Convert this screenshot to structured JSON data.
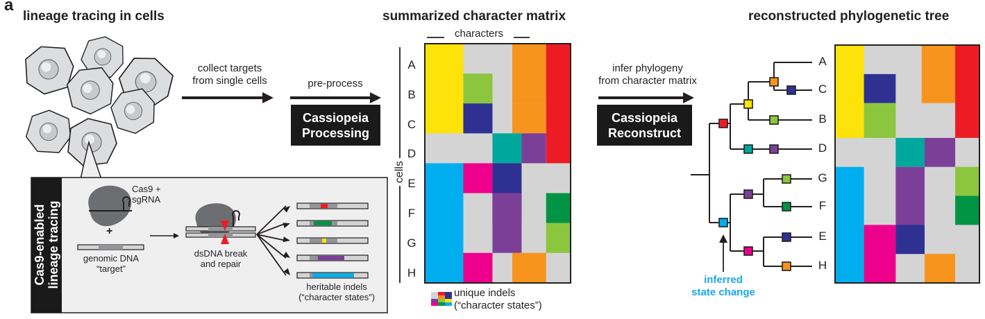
{
  "panel_letter": "a",
  "sections": {
    "left_title": "lineage tracing in cells",
    "middle_title": "summarized character matrix",
    "right_title": "reconstructed phylogenetic tree"
  },
  "steps": {
    "collect": [
      "collect targets",
      "from single cells"
    ],
    "preprocess": "pre-process",
    "processing_box": [
      "Cassiopeia",
      "Processing"
    ],
    "infer": [
      "infer phylogeny",
      "from character matrix"
    ],
    "reconstruct_box": [
      "Cassiopeia",
      "Reconstruct"
    ]
  },
  "inset": {
    "side_label": [
      "Cas9-enabled",
      "lineage tracing"
    ],
    "cas9_label": [
      "Cas9 +",
      "sgRNA"
    ],
    "plus": "+",
    "genomic_label": [
      "genomic DNA",
      "“target”"
    ],
    "break_label": [
      "dsDNA break",
      "and repair"
    ],
    "indels_label": [
      "heritable indels",
      "(“character states”)"
    ]
  },
  "matrix": {
    "characters_label": "characters",
    "cells_label": "cells",
    "rows": [
      "A",
      "B",
      "C",
      "D",
      "E",
      "F",
      "G",
      "H"
    ],
    "legend": [
      "unique indels",
      "(“character states”)"
    ]
  },
  "tree": {
    "leaves": [
      "A",
      "C",
      "B",
      "D",
      "G",
      "F",
      "E",
      "H"
    ],
    "annotation": [
      "inferred",
      "state change"
    ]
  },
  "colors": {
    "yellow": "#fde30a",
    "lime": "#8cc63f",
    "navy": "#2e3192",
    "orange": "#f7941d",
    "red": "#ed1c24",
    "gray": "#d4d4d4",
    "teal": "#00a79d",
    "purple": "#7c3f98",
    "cyan": "#00aeef",
    "magenta": "#ec008c",
    "green": "#009444",
    "annotation": "#1ba7e8"
  }
}
